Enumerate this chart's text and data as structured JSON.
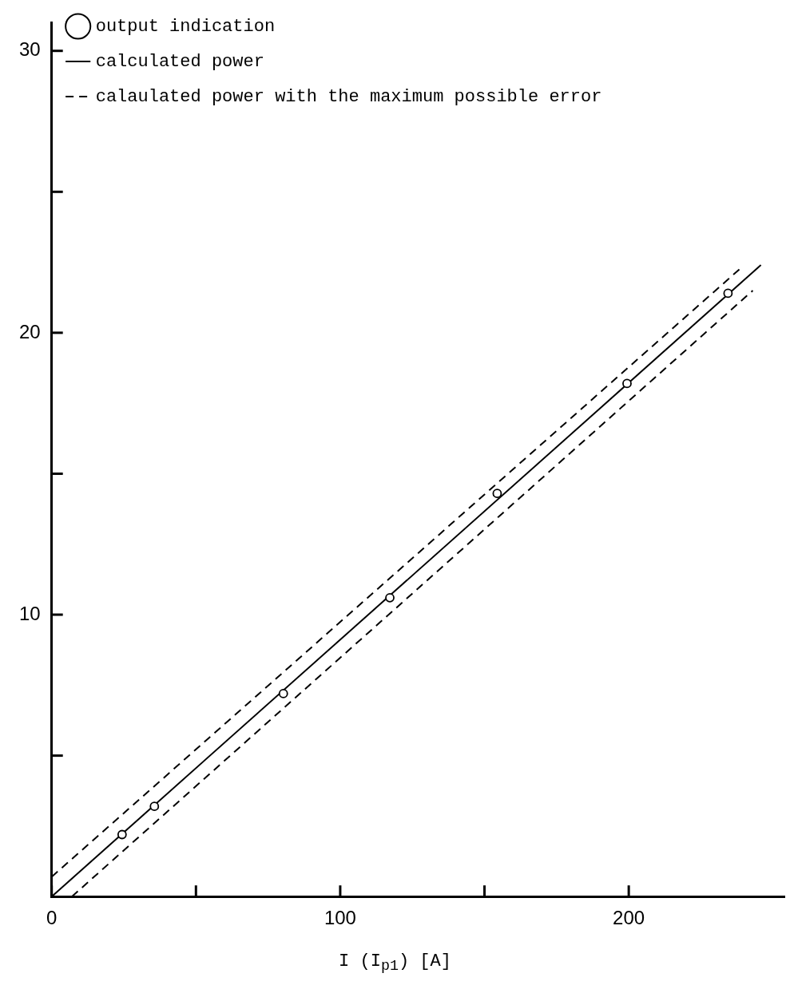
{
  "chart_data": {
    "type": "scatter",
    "xlabel": "I (I$_{p1}$) [A]",
    "xlim": [
      0,
      254
    ],
    "ylim": [
      0,
      31
    ],
    "xticks": [
      0,
      {
        "value": 50,
        "label": null
      },
      100,
      {
        "value": 150,
        "label": null
      },
      200
    ],
    "yticks": [
      {
        "value": 5,
        "label": null
      },
      10,
      {
        "value": 15,
        "label": null
      },
      20,
      {
        "value": 25,
        "label": null
      },
      30
    ],
    "grid": false,
    "legend": "top left",
    "series": [
      {
        "name": "output indication",
        "marker": "circle",
        "color": "#000000",
        "x": [
          24.4,
          35.6,
          80.3,
          117.2,
          154.4,
          199.4,
          234.4
        ],
        "values": [
          2.2,
          3.2,
          7.2,
          10.6,
          14.3,
          18.2,
          21.4
        ]
      },
      {
        "name": "calculated power",
        "type": "line",
        "marker": "none",
        "line_style": "solid",
        "color": "#000000",
        "x": [
          0,
          245.8
        ],
        "values": [
          0,
          22.4
        ]
      },
      {
        "name": "calaulated power with the maximum possible error",
        "type": "line",
        "marker": "none",
        "line_style": "dashed",
        "color": "#000000",
        "x": [
          0,
          238.9
        ],
        "values": [
          0.7,
          22.3
        ]
      },
      {
        "type": "line",
        "marker": "none",
        "line_style": "dashed",
        "color": "#000000",
        "x": [
          7,
          243
        ],
        "values": [
          0,
          21.5
        ]
      }
    ]
  }
}
